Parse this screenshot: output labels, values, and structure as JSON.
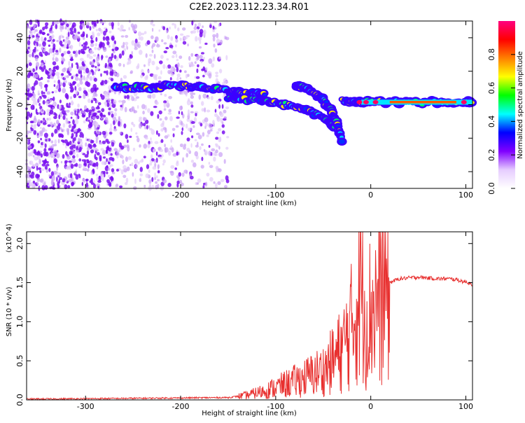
{
  "title": "C2E2.2023.112.23.34.R01",
  "chart_data": [
    {
      "type": "heatmap",
      "xlabel": "Height of straight line (km)",
      "ylabel": "Frequency (Hz)",
      "xlim": [
        -362,
        107
      ],
      "ylim": [
        -50,
        50
      ],
      "x_ticks": [
        -300,
        -200,
        -100,
        0,
        100
      ],
      "x_tick_labels": [
        "-300",
        "-200",
        "-100",
        "0",
        "100"
      ],
      "y_ticks": [
        -40,
        -20,
        0,
        20,
        40
      ],
      "y_tick_labels": [
        "-40",
        "-20",
        "0",
        "20",
        "40"
      ],
      "colorbar": {
        "label": "Normalized spectral amplitude",
        "range": [
          0,
          1
        ],
        "ticks": [
          0.0,
          0.2,
          0.4,
          0.6,
          0.8
        ],
        "tick_labels": [
          "0.0",
          "0.2",
          "0.4",
          "0.6",
          "0.8"
        ],
        "colormap": [
          "#ffffff",
          "#e6ccff",
          "#8000ff",
          "#0000ff",
          "#00ffff",
          "#00ff00",
          "#ffff00",
          "#ff8000",
          "#ff0000",
          "#ff0080"
        ]
      },
      "ridges": [
        {
          "x": [
            -270,
            -250,
            -230,
            -210,
            -190,
            -170,
            -150,
            -130,
            -110
          ],
          "y": [
            11,
            10,
            10,
            12,
            11,
            10,
            8,
            7,
            6
          ]
        },
        {
          "x": [
            -150,
            -130,
            -110,
            -90,
            -70,
            -55,
            -45,
            -38
          ],
          "y": [
            4,
            3,
            2,
            0,
            -3,
            -6,
            -10,
            -14
          ]
        },
        {
          "x": [
            -80,
            -70,
            -60,
            -50,
            -42,
            -35,
            -30
          ],
          "y": [
            12,
            10,
            7,
            3,
            -3,
            -12,
            -22
          ]
        },
        {
          "x": [
            -30,
            -15,
            0,
            20,
            40,
            60,
            80,
            100,
            107
          ],
          "y": [
            2,
            1,
            1.5,
            1.5,
            1.5,
            1.5,
            1.5,
            1.5,
            1.5
          ]
        }
      ],
      "grid": false
    },
    {
      "type": "line",
      "xlabel": "Height of straight line (km)",
      "ylabel": "SNR (10 * v/v)",
      "y_scale_label": "(x10^4)",
      "xlim": [
        -362,
        107
      ],
      "ylim": [
        0,
        2.15
      ],
      "x_ticks": [
        -300,
        -200,
        -100,
        0,
        100
      ],
      "x_tick_labels": [
        "-300",
        "-200",
        "-100",
        "0",
        "100"
      ],
      "y_ticks": [
        0,
        0.5,
        1.0,
        1.5,
        2.0
      ],
      "y_tick_labels": [
        "0.0",
        "0.5",
        "1.0",
        "1.5",
        "2.0"
      ],
      "series": [
        {
          "color": "#e8302f",
          "x": [
            -362,
            -300,
            -250,
            -200,
            -150,
            -130,
            -110,
            -90,
            -70,
            -50,
            -40,
            -30,
            -20,
            -15,
            -10,
            -5,
            0,
            10,
            20,
            30,
            40,
            50,
            60,
            70,
            80,
            90,
            95,
            100,
            107
          ],
          "y": [
            0.01,
            0.015,
            0.02,
            0.025,
            0.03,
            0.06,
            0.12,
            0.2,
            0.28,
            0.38,
            0.5,
            0.65,
            0.95,
            1.2,
            1.5,
            1.05,
            1.15,
            1.35,
            1.5,
            1.55,
            1.56,
            1.57,
            1.56,
            1.55,
            1.55,
            1.54,
            1.52,
            1.51,
            1.48
          ]
        }
      ],
      "grid": false
    }
  ]
}
